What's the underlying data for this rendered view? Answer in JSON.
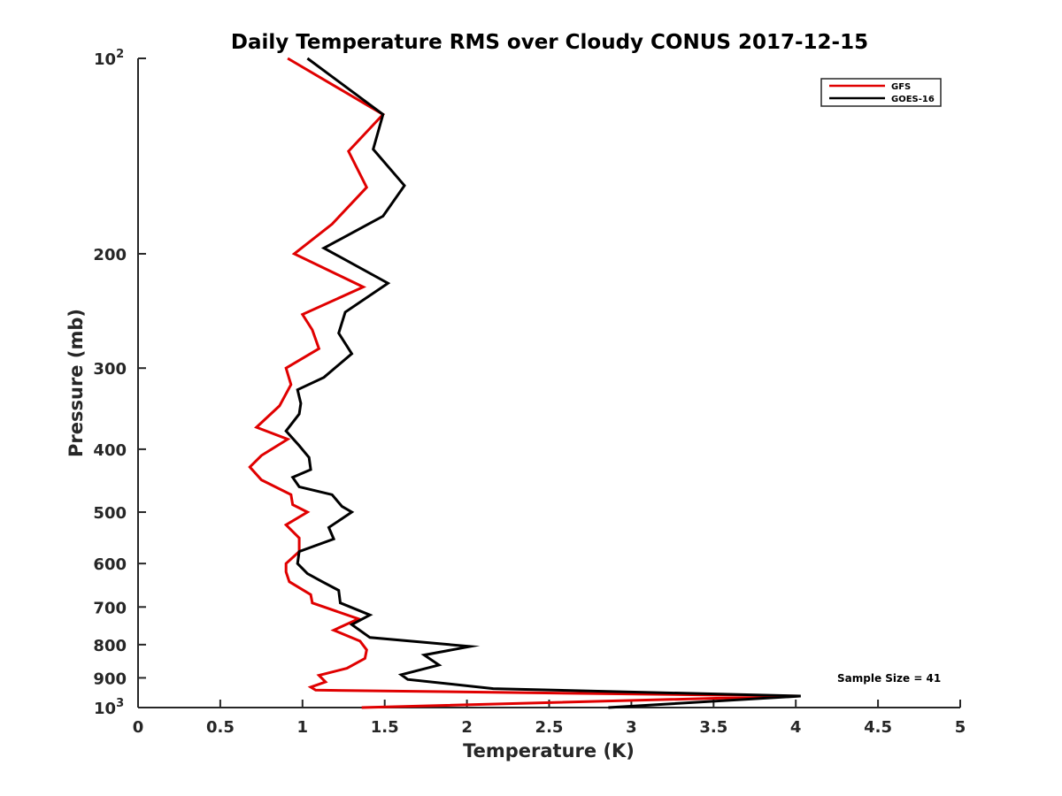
{
  "chart_data": {
    "type": "line",
    "title": "Daily Temperature RMS over Cloudy CONUS 2017-12-15",
    "xlabel": "Temperature (K)",
    "ylabel": "Pressure (mb)",
    "xlim": [
      0,
      5
    ],
    "ylim": [
      100,
      1000
    ],
    "y_scale": "log",
    "y_reversed": true,
    "x_ticks": [
      "0",
      "0.5",
      "1",
      "1.5",
      "2",
      "2.5",
      "3",
      "3.5",
      "4",
      "4.5",
      "5"
    ],
    "y_ticks": [
      {
        "value": 100,
        "label": "10",
        "exponent": "2"
      },
      {
        "value": 200,
        "label": "200"
      },
      {
        "value": 300,
        "label": "300"
      },
      {
        "value": 400,
        "label": "400"
      },
      {
        "value": 500,
        "label": "500"
      },
      {
        "value": 600,
        "label": "600"
      },
      {
        "value": 700,
        "label": "700"
      },
      {
        "value": 800,
        "label": "800"
      },
      {
        "value": 900,
        "label": "900"
      },
      {
        "value": 1000,
        "label": "10",
        "exponent": "3"
      }
    ],
    "grid": false,
    "legend_position": "top-right",
    "annotation": "Sample Size = 41",
    "series": [
      {
        "name": "GFS",
        "color": "#e00000",
        "x": [
          0.91,
          1.49,
          1.28,
          1.39,
          1.18,
          0.95,
          1.37,
          1.0,
          1.06,
          1.1,
          0.9,
          0.93,
          0.86,
          0.72,
          0.91,
          0.75,
          0.68,
          0.75,
          0.93,
          0.94,
          1.03,
          0.9,
          0.98,
          0.98,
          0.9,
          0.9,
          0.92,
          1.05,
          1.06,
          1.34,
          1.19,
          1.35,
          1.39,
          1.38,
          1.27,
          1.1,
          1.14,
          1.05,
          1.08,
          4.02,
          1.36
        ],
        "y": [
          100,
          122,
          139,
          158,
          180,
          200,
          225,
          248,
          262,
          280,
          300,
          318,
          343,
          370,
          386,
          409,
          426,
          446,
          470,
          487,
          500,
          523,
          548,
          575,
          600,
          618,
          640,
          670,
          690,
          730,
          760,
          790,
          815,
          840,
          870,
          892,
          913,
          930,
          940,
          960,
          1000
        ]
      },
      {
        "name": "GOES-16",
        "color": "#000000",
        "x": [
          1.03,
          1.49,
          1.43,
          1.62,
          1.49,
          1.13,
          1.52,
          1.26,
          1.22,
          1.3,
          1.13,
          0.97,
          0.99,
          0.98,
          0.9,
          0.98,
          1.04,
          1.05,
          0.94,
          0.98,
          1.18,
          1.24,
          1.3,
          1.16,
          1.19,
          0.98,
          0.97,
          1.03,
          1.12,
          1.22,
          1.23,
          1.41,
          1.3,
          1.41,
          2.02,
          1.74,
          1.83,
          1.6,
          1.64,
          2.16,
          4.03,
          2.86
        ],
        "y": [
          100,
          122,
          138,
          157,
          175,
          196,
          222,
          246,
          265,
          285,
          310,
          324,
          340,
          353,
          375,
          395,
          412,
          430,
          442,
          457,
          470,
          490,
          500,
          528,
          550,
          575,
          600,
          622,
          640,
          660,
          690,
          720,
          745,
          780,
          805,
          830,
          860,
          890,
          905,
          935,
          960,
          1000
        ]
      }
    ]
  }
}
